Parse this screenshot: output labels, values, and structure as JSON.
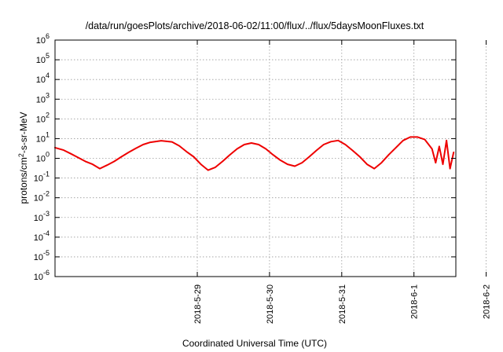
{
  "chart_data": {
    "type": "line",
    "title": "/data/run/goesPlots/archive/2018-06-02/11:00/flux/../flux/5daysMoonFluxes.txt",
    "xlabel": "Coordinated Universal Time (UTC)",
    "ylabel_base": "protons/cm",
    "ylabel_sup": "2",
    "ylabel_rest": "-s-sr-MeV",
    "yscale": "log",
    "ylim_exp": [
      -6,
      6
    ],
    "y_ticks": [
      {
        "base": "10",
        "exp": "-6",
        "e": -6
      },
      {
        "base": "10",
        "exp": "-5",
        "e": -5
      },
      {
        "base": "10",
        "exp": "-4",
        "e": -4
      },
      {
        "base": "10",
        "exp": "-3",
        "e": -3
      },
      {
        "base": "10",
        "exp": "-2",
        "e": -2
      },
      {
        "base": "10",
        "exp": "-1",
        "e": -1
      },
      {
        "base": "10",
        "exp": "0",
        "e": 0
      },
      {
        "base": "10",
        "exp": "1",
        "e": 1
      },
      {
        "base": "10",
        "exp": "2",
        "e": 2
      },
      {
        "base": "10",
        "exp": "3",
        "e": 3
      },
      {
        "base": "10",
        "exp": "4",
        "e": 4
      },
      {
        "base": "10",
        "exp": "5",
        "e": 5
      },
      {
        "base": "10",
        "exp": "6",
        "e": 6
      }
    ],
    "xlim_days": [
      -1.97,
      3.58
    ],
    "x_ticks": [
      {
        "label": "2018-5-29",
        "d": 0
      },
      {
        "label": "2018-5-30",
        "d": 1
      },
      {
        "label": "2018-5-31",
        "d": 2
      },
      {
        "label": "2018-6-1",
        "d": 3
      },
      {
        "label": "2018-6-2",
        "d": 4
      }
    ],
    "grid": true,
    "series": [
      {
        "color": "#ee0000",
        "x": [
          -1.97,
          -1.85,
          -1.75,
          -1.65,
          -1.55,
          -1.45,
          -1.35,
          -1.25,
          -1.15,
          -1.05,
          -0.95,
          -0.85,
          -0.75,
          -0.65,
          -0.5,
          -0.35,
          -0.25,
          -0.15,
          -0.05,
          0.05,
          0.15,
          0.25,
          0.35,
          0.45,
          0.55,
          0.65,
          0.75,
          0.85,
          0.95,
          1.05,
          1.15,
          1.25,
          1.35,
          1.45,
          1.55,
          1.65,
          1.75,
          1.85,
          1.95,
          2.05,
          2.15,
          2.25,
          2.35,
          2.45,
          2.55,
          2.65,
          2.75,
          2.85,
          2.95,
          3.05,
          3.15,
          3.25,
          3.3,
          3.35,
          3.4,
          3.45,
          3.5,
          3.55
        ],
        "y": [
          3.5,
          2.6,
          1.7,
          1.1,
          0.7,
          0.5,
          0.3,
          0.45,
          0.7,
          1.2,
          2.0,
          3.2,
          5.0,
          6.5,
          7.8,
          6.8,
          4.3,
          2.2,
          1.2,
          0.5,
          0.25,
          0.35,
          0.7,
          1.5,
          3,
          5,
          6,
          5,
          3,
          1.5,
          0.8,
          0.5,
          0.4,
          0.6,
          1.2,
          2.5,
          5,
          7,
          8,
          5,
          2.5,
          1.2,
          0.5,
          0.3,
          0.6,
          1.5,
          3.5,
          8,
          12,
          12,
          9,
          3,
          0.6,
          4,
          0.5,
          8,
          0.3,
          2
        ],
        "xlim": [
          -1.97,
          4.58
        ]
      }
    ]
  }
}
